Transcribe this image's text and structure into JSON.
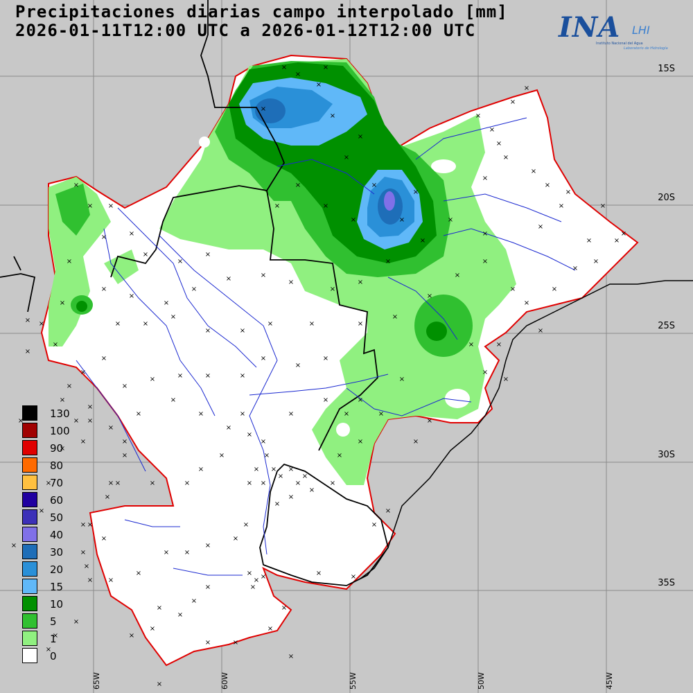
{
  "map": {
    "title_line1": "Precipitaciones diarias campo interpolado [mm]",
    "title_line2": "2026-01-11T12:00 UTC a 2026-01-12T12:00 UTC"
  },
  "logo": {
    "main": "INA",
    "secondary": "LHI",
    "subtitle": "Instituto Nacional del Agua",
    "subtitle2": "Laboratorio de Hidrología"
  },
  "latitude_labels": [
    "15S",
    "20S",
    "25S",
    "30S",
    "35S"
  ],
  "longitude_labels": [
    "65W",
    "60W",
    "55W",
    "50W",
    "45W"
  ],
  "legend": {
    "items": [
      {
        "label": "130",
        "color": "#000000"
      },
      {
        "label": "100",
        "color": "#a00000"
      },
      {
        "label": "90",
        "color": "#e00000"
      },
      {
        "label": "80",
        "color": "#ff6a00"
      },
      {
        "label": "70",
        "color": "#ffc040"
      },
      {
        "label": "60",
        "color": "#2000a0"
      },
      {
        "label": "50",
        "color": "#3c30b8"
      },
      {
        "label": "40",
        "color": "#8070e8"
      },
      {
        "label": "30",
        "color": "#1e6eb8"
      },
      {
        "label": "20",
        "color": "#2a90d8"
      },
      {
        "label": "15",
        "color": "#60b8f8"
      },
      {
        "label": "10",
        "color": "#009000"
      },
      {
        "label": "5",
        "color": "#30c030"
      },
      {
        "label": "1",
        "color": "#90f080"
      },
      {
        "label": "0",
        "color": "#ffffff"
      }
    ]
  }
}
